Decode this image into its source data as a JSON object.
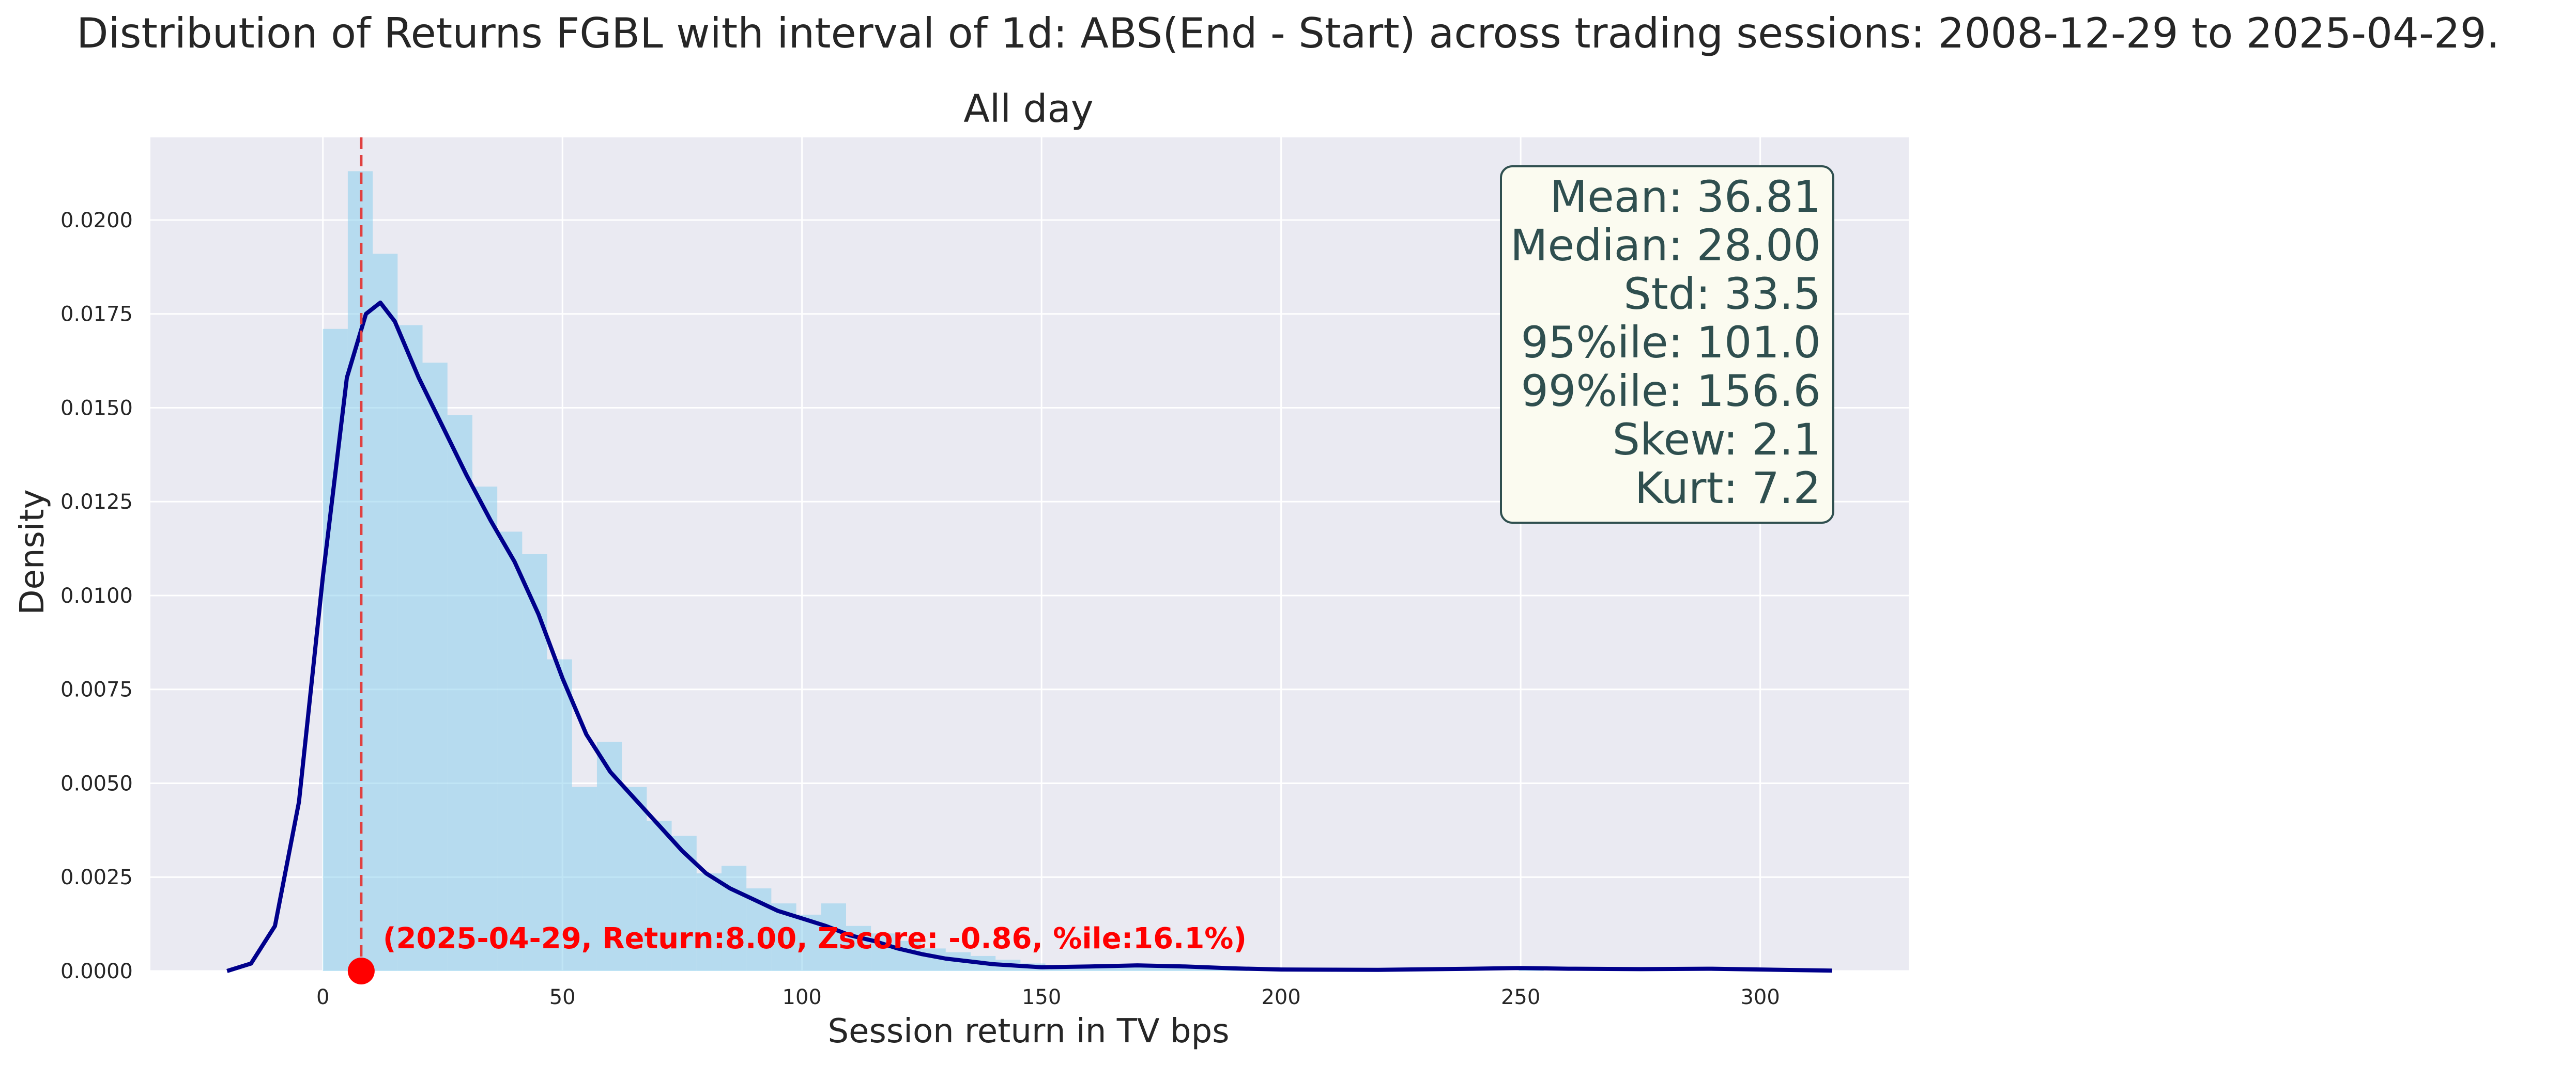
{
  "chart_data": {
    "type": "histogram",
    "title": "Distribution of Returns FGBL with interval of 1d: ABS(End - Start) across trading sessions: 2008-12-29 to 2025-04-29.",
    "subtitle": "All day",
    "xlabel": "Session return in TV bps",
    "ylabel": "Density",
    "xlim": [
      -36,
      331
    ],
    "ylim": [
      0,
      0.0222
    ],
    "xticks": [
      0,
      50,
      100,
      150,
      200,
      250,
      300
    ],
    "yticks": [
      0.0,
      0.0025,
      0.005,
      0.0075,
      0.01,
      0.0125,
      0.015,
      0.0175,
      0.02
    ],
    "ytick_labels": [
      "0.0000",
      "0.0025",
      "0.0050",
      "0.0075",
      "0.0100",
      "0.0125",
      "0.0150",
      "0.0175",
      "0.0200"
    ],
    "grid": true,
    "bin_width": 5.2,
    "bins": [
      {
        "x0": 0,
        "density": 0.0171
      },
      {
        "x0": 5.2,
        "density": 0.0213
      },
      {
        "x0": 10.4,
        "density": 0.0191
      },
      {
        "x0": 15.6,
        "density": 0.0172
      },
      {
        "x0": 20.8,
        "density": 0.0162
      },
      {
        "x0": 26.0,
        "density": 0.0148
      },
      {
        "x0": 31.2,
        "density": 0.0129
      },
      {
        "x0": 36.4,
        "density": 0.0117
      },
      {
        "x0": 41.6,
        "density": 0.0111
      },
      {
        "x0": 46.8,
        "density": 0.0083
      },
      {
        "x0": 52.0,
        "density": 0.0049
      },
      {
        "x0": 57.2,
        "density": 0.0061
      },
      {
        "x0": 62.4,
        "density": 0.0049
      },
      {
        "x0": 67.6,
        "density": 0.004
      },
      {
        "x0": 72.8,
        "density": 0.0036
      },
      {
        "x0": 78.0,
        "density": 0.0026
      },
      {
        "x0": 83.2,
        "density": 0.0028
      },
      {
        "x0": 88.4,
        "density": 0.0022
      },
      {
        "x0": 93.6,
        "density": 0.0018
      },
      {
        "x0": 98.8,
        "density": 0.0015
      },
      {
        "x0": 104.0,
        "density": 0.0018
      },
      {
        "x0": 109.2,
        "density": 0.0012
      },
      {
        "x0": 114.4,
        "density": 0.001
      },
      {
        "x0": 119.6,
        "density": 0.0008
      },
      {
        "x0": 124.8,
        "density": 0.0006
      },
      {
        "x0": 130.0,
        "density": 0.0005
      },
      {
        "x0": 135.2,
        "density": 0.0004
      },
      {
        "x0": 140.4,
        "density": 0.0003
      },
      {
        "x0": 145.6,
        "density": 0.0002
      },
      {
        "x0": 150.8,
        "density": 0.00015
      },
      {
        "x0": 156.0,
        "density": 0.00012
      },
      {
        "x0": 161.2,
        "density": 0.0001
      },
      {
        "x0": 166.4,
        "density": 0.00012
      },
      {
        "x0": 171.6,
        "density": 0.0001
      },
      {
        "x0": 176.8,
        "density": 8e-05
      },
      {
        "x0": 182.0,
        "density": 6e-05
      },
      {
        "x0": 187.2,
        "density": 5e-05
      },
      {
        "x0": 192.4,
        "density": 4e-05
      },
      {
        "x0": 197.6,
        "density": 3e-05
      },
      {
        "x0": 202.8,
        "density": 3e-05
      },
      {
        "x0": 249.6,
        "density": 5e-05
      },
      {
        "x0": 290.0,
        "density": 3e-05
      }
    ],
    "kde": [
      [
        -20,
        0.0
      ],
      [
        -15,
        0.0002
      ],
      [
        -10,
        0.0012
      ],
      [
        -5,
        0.0045
      ],
      [
        0,
        0.0105
      ],
      [
        5,
        0.0158
      ],
      [
        9,
        0.0175
      ],
      [
        12,
        0.0178
      ],
      [
        15,
        0.0173
      ],
      [
        20,
        0.0158
      ],
      [
        25,
        0.0145
      ],
      [
        30,
        0.0132
      ],
      [
        35,
        0.012
      ],
      [
        40,
        0.0109
      ],
      [
        45,
        0.0095
      ],
      [
        50,
        0.0078
      ],
      [
        55,
        0.0063
      ],
      [
        60,
        0.0053
      ],
      [
        65,
        0.0046
      ],
      [
        70,
        0.0039
      ],
      [
        75,
        0.0032
      ],
      [
        80,
        0.0026
      ],
      [
        85,
        0.0022
      ],
      [
        90,
        0.0019
      ],
      [
        95,
        0.0016
      ],
      [
        100,
        0.0014
      ],
      [
        105,
        0.0012
      ],
      [
        110,
        0.00095
      ],
      [
        115,
        0.0008
      ],
      [
        120,
        0.0006
      ],
      [
        125,
        0.00045
      ],
      [
        130,
        0.00033
      ],
      [
        140,
        0.00018
      ],
      [
        150,
        0.0001
      ],
      [
        160,
        0.00012
      ],
      [
        170,
        0.00015
      ],
      [
        180,
        0.00012
      ],
      [
        190,
        7e-05
      ],
      [
        200,
        4e-05
      ],
      [
        220,
        3e-05
      ],
      [
        240,
        6e-05
      ],
      [
        250,
        8e-05
      ],
      [
        260,
        6e-05
      ],
      [
        275,
        5e-05
      ],
      [
        290,
        6e-05
      ],
      [
        300,
        4e-05
      ],
      [
        315,
        1e-05
      ]
    ],
    "marker": {
      "x": 8.0,
      "y": 0.0
    },
    "vline_x": 8.0,
    "annotation": "(2025-04-29, Return:8.00, Zscore: -0.86, %ile:16.1%)",
    "stats": [
      "Mean: 36.81",
      "Median: 28.00",
      "Std: 33.5",
      "95%ile: 101.0",
      "99%ile: 156.6",
      "Skew: 2.1",
      "Kurt: 7.2"
    ],
    "colors": {
      "plot_bg": "#eaeaf2",
      "grid": "#ffffff",
      "bars": "#87ceeb",
      "kde": "#00008b",
      "marker": "#ff0000",
      "vline": "#e04040",
      "stats_box_bg": "#fbfbf0",
      "stats_box_edge": "#2f4f4f",
      "stats_text": "#2f4f4f"
    }
  }
}
